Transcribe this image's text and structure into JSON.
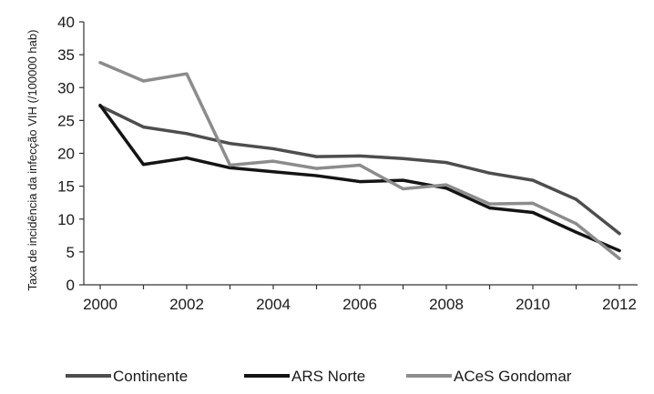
{
  "chart_data": {
    "type": "line",
    "title": "",
    "xlabel": "",
    "ylabel": "Taxa de incidência da infecção VIH (/100000 hab)",
    "x": [
      2000,
      2001,
      2002,
      2003,
      2004,
      2005,
      2006,
      2007,
      2008,
      2009,
      2010,
      2011,
      2012
    ],
    "x_ticks": [
      "2000",
      "2002",
      "2004",
      "2006",
      "2008",
      "2010",
      "2012"
    ],
    "y_ticks": [
      "0",
      "5",
      "10",
      "15",
      "20",
      "25",
      "30",
      "35",
      "40"
    ],
    "xlim": [
      2000,
      2012
    ],
    "ylim": [
      0,
      40
    ],
    "grid": false,
    "legend_position": "bottom",
    "series": [
      {
        "name": "Continente",
        "color": "#4d4d4d",
        "values": [
          27.2,
          24.0,
          23.0,
          21.5,
          20.7,
          19.5,
          19.6,
          19.2,
          18.6,
          17.0,
          15.9,
          13.0,
          7.8
        ]
      },
      {
        "name": "ARS Norte",
        "color": "#141414",
        "values": [
          27.3,
          18.3,
          19.3,
          17.8,
          17.2,
          16.6,
          15.7,
          15.9,
          14.7,
          11.7,
          11.0,
          8.0,
          5.2
        ]
      },
      {
        "name": "ACeS Gondomar",
        "color": "#8c8c8c",
        "values": [
          33.8,
          31.0,
          32.1,
          18.2,
          18.8,
          17.7,
          18.2,
          14.6,
          15.2,
          12.3,
          12.4,
          9.3,
          4.0
        ]
      }
    ]
  }
}
